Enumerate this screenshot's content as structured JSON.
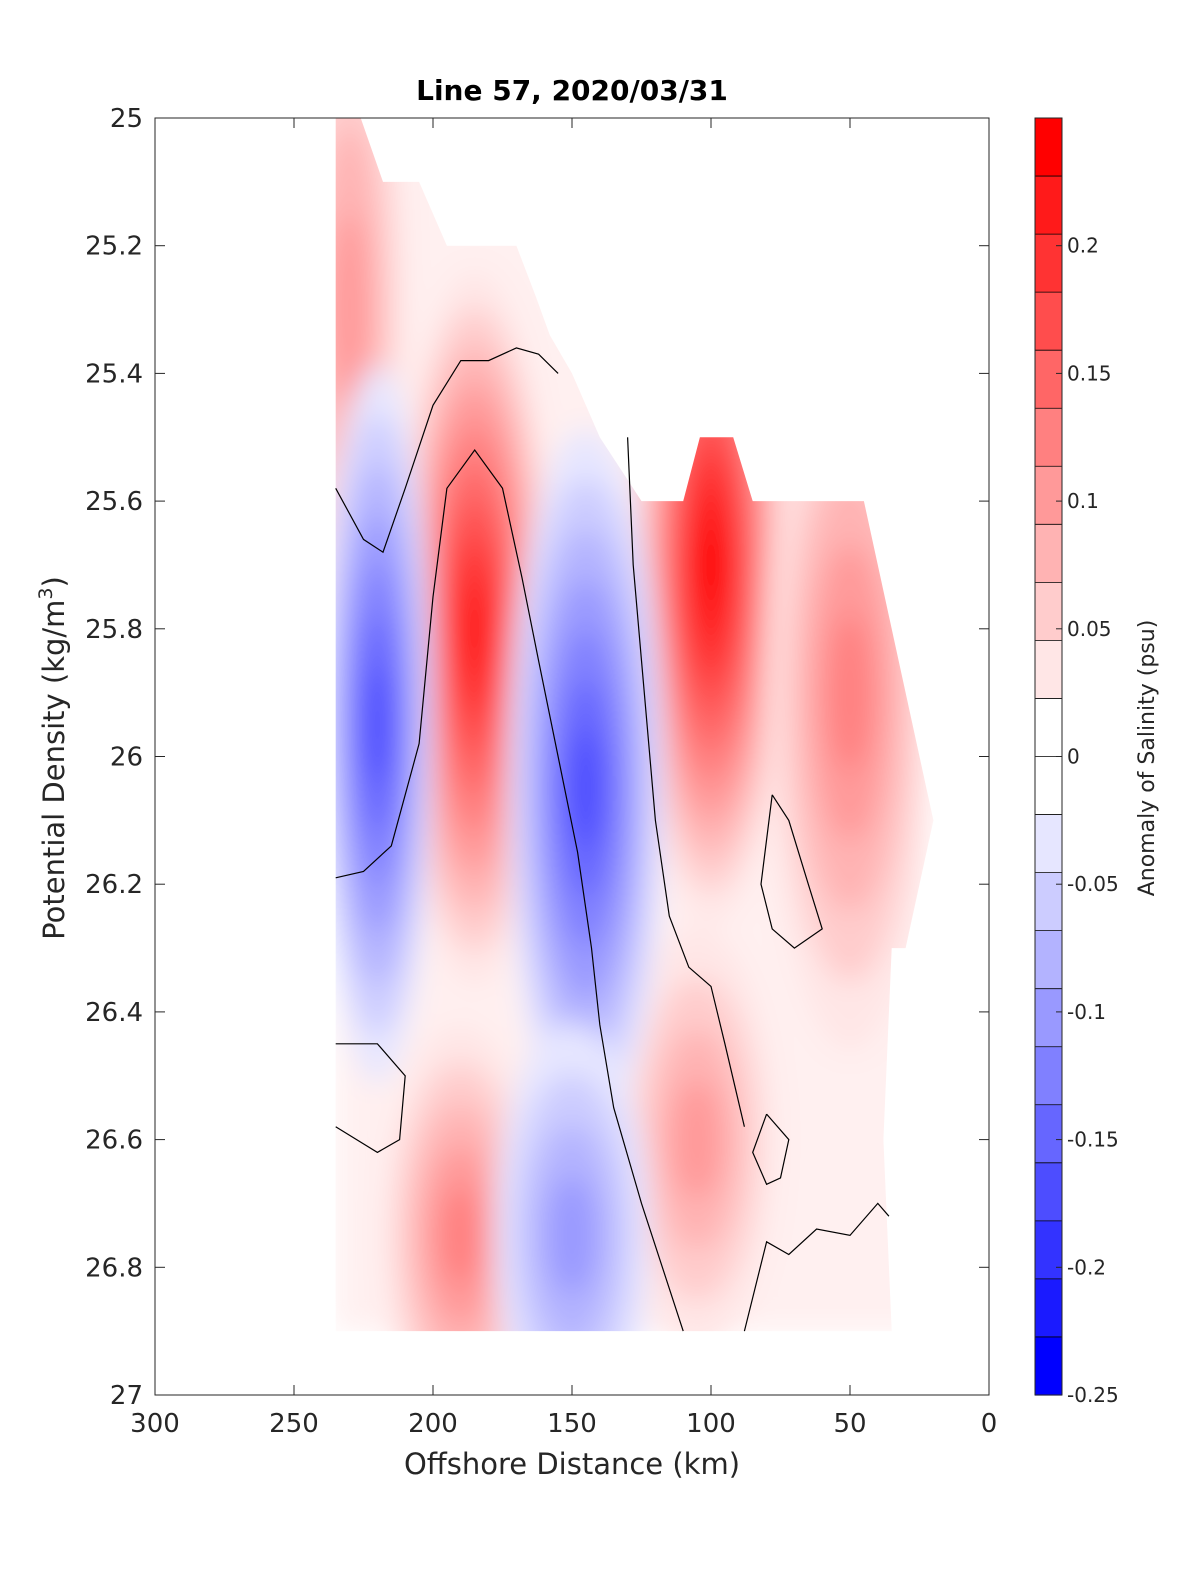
{
  "chart_data": {
    "type": "heatmap",
    "subtype": "filled-contour section",
    "title": "Line 57, 2020/03/31",
    "xlabel": "Offshore Distance (km)",
    "ylabel_main": "Potential Density (kg/m",
    "ylabel_sup": "3",
    "ylabel_close": ")",
    "xlim": [
      300,
      0
    ],
    "x_reversed": true,
    "ylim": [
      25,
      27
    ],
    "y_reversed": true,
    "xticks": [
      300,
      250,
      200,
      150,
      100,
      50,
      0
    ],
    "xtick_labels": [
      "300",
      "250",
      "200",
      "150",
      "100",
      "50",
      "0"
    ],
    "yticks": [
      25,
      25.2,
      25.4,
      25.6,
      25.8,
      26,
      26.2,
      26.4,
      26.6,
      26.8,
      27
    ],
    "ytick_labels": [
      "25",
      "25.2",
      "25.4",
      "25.6",
      "25.8",
      "26",
      "26.2",
      "26.4",
      "26.6",
      "26.8",
      "27"
    ],
    "colorbar": {
      "label": "Anomaly of Salinity (psu)",
      "range": [
        -0.25,
        0.25
      ],
      "step": 0.025,
      "ticks": [
        0.2,
        0.15,
        0.1,
        0.05,
        0,
        -0.05,
        -0.1,
        -0.15,
        -0.2,
        -0.25
      ],
      "tick_labels": [
        "0.2",
        "0.15",
        "0.1",
        "0.05",
        "0",
        "-0.05",
        "-0.1",
        "-0.15",
        "-0.2",
        "-0.25"
      ],
      "colors_top_to_bottom": [
        "#ff0000",
        "#ff1a1a",
        "#ff3333",
        "#ff4d4d",
        "#ff6666",
        "#ff8080",
        "#ff9999",
        "#ffb3b3",
        "#ffcccc",
        "#ffe6e6",
        "#ffffff",
        "#ffffff",
        "#e6e6ff",
        "#ccccff",
        "#b3b3ff",
        "#9999ff",
        "#8080ff",
        "#6666ff",
        "#4d4dff",
        "#3333ff",
        "#1a1aff",
        "#0000ff"
      ]
    },
    "colors": {
      "positive": "#ff0000",
      "negative": "#0000ff",
      "zero": "#ffffff",
      "contour": "#000000"
    },
    "data_extent": {
      "x_range_km": [
        20,
        235
      ],
      "y_range": [
        25.0,
        26.9
      ]
    },
    "features": [
      {
        "kind": "positive",
        "x": 230,
        "y": 25.3,
        "value": 0.1
      },
      {
        "kind": "positive",
        "x": 185,
        "y": 25.8,
        "value": 0.225
      },
      {
        "kind": "positive",
        "x": 100,
        "y": 25.7,
        "value": 0.25
      },
      {
        "kind": "positive",
        "x": 50,
        "y": 25.9,
        "value": 0.125
      },
      {
        "kind": "positive",
        "x": 190,
        "y": 26.75,
        "value": 0.125
      },
      {
        "kind": "positive",
        "x": 105,
        "y": 26.6,
        "value": 0.1
      },
      {
        "kind": "negative",
        "x": 220,
        "y": 25.95,
        "value": -0.175
      },
      {
        "kind": "negative",
        "x": 145,
        "y": 26.05,
        "value": -0.175
      },
      {
        "kind": "negative",
        "x": 150,
        "y": 26.75,
        "value": -0.1
      }
    ]
  }
}
